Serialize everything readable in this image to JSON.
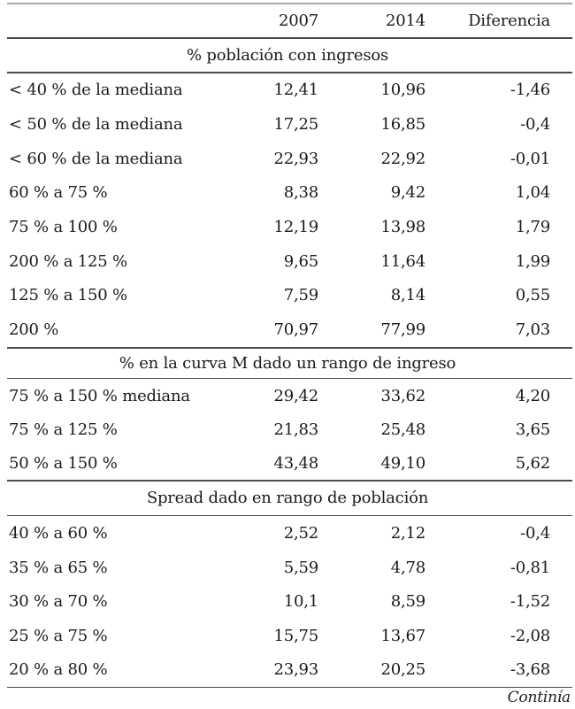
{
  "colors": {
    "background": "#ffffff",
    "text": "#1b1b1b",
    "rule_dark": "#4c4c4c",
    "rule_light": "#a9a9a9"
  },
  "table": {
    "columns": [
      "2007",
      "2014",
      "Diferencia"
    ],
    "sections": [
      {
        "title": "% población con ingresos",
        "rows": [
          {
            "label": "< 40 % de la mediana",
            "y2007": "12,41",
            "y2014": "10,96",
            "diff": "-1,46"
          },
          {
            "label": "< 50 % de la mediana",
            "y2007": "17,25",
            "y2014": "16,85",
            "diff": "-0,4"
          },
          {
            "label": "< 60 % de la mediana",
            "y2007": "22,93",
            "y2014": "22,92",
            "diff": "-0,01"
          },
          {
            "label": "60 % a 75 %",
            "y2007": "8,38",
            "y2014": "9,42",
            "diff": "1,04"
          },
          {
            "label": "75 % a 100 %",
            "y2007": "12,19",
            "y2014": "13,98",
            "diff": "1,79"
          },
          {
            "label": "200 % a 125 %",
            "y2007": "9,65",
            "y2014": "11,64",
            "diff": "1,99"
          },
          {
            "label": "125 % a 150 %",
            "y2007": "7,59",
            "y2014": "8,14",
            "diff": "0,55"
          },
          {
            "label": "200 %",
            "y2007": "70,97",
            "y2014": "77,99",
            "diff": "7,03"
          }
        ]
      },
      {
        "title": "% en la curva M dado un rango de ingreso",
        "rows": [
          {
            "label": "75 % a 150 % mediana",
            "y2007": "29,42",
            "y2014": "33,62",
            "diff": "4,20"
          },
          {
            "label": "75 % a 125 %",
            "y2007": "21,83",
            "y2014": "25,48",
            "diff": "3,65"
          },
          {
            "label": "50 % a 150 %",
            "y2007": "43,48",
            "y2014": "49,10",
            "diff": "5,62"
          }
        ]
      },
      {
        "title": "Spread dado en rango de población",
        "rows": [
          {
            "label": "40 % a 60 %",
            "y2007": "2,52",
            "y2014": "2,12",
            "diff": "-0,4"
          },
          {
            "label": "35 % a 65 %",
            "y2007": "5,59",
            "y2014": "4,78",
            "diff": "-0,81"
          },
          {
            "label": "30 % a 70 %",
            "y2007": "10,1",
            "y2014": "8,59",
            "diff": "-1,52"
          },
          {
            "label": "25 % a 75 %",
            "y2007": "15,75",
            "y2014": "13,67",
            "diff": "-2,08"
          },
          {
            "label": "20 % a 80 %",
            "y2007": "23,93",
            "y2014": "20,25",
            "diff": "-3,68"
          }
        ]
      }
    ],
    "footer_note": "Continía"
  }
}
